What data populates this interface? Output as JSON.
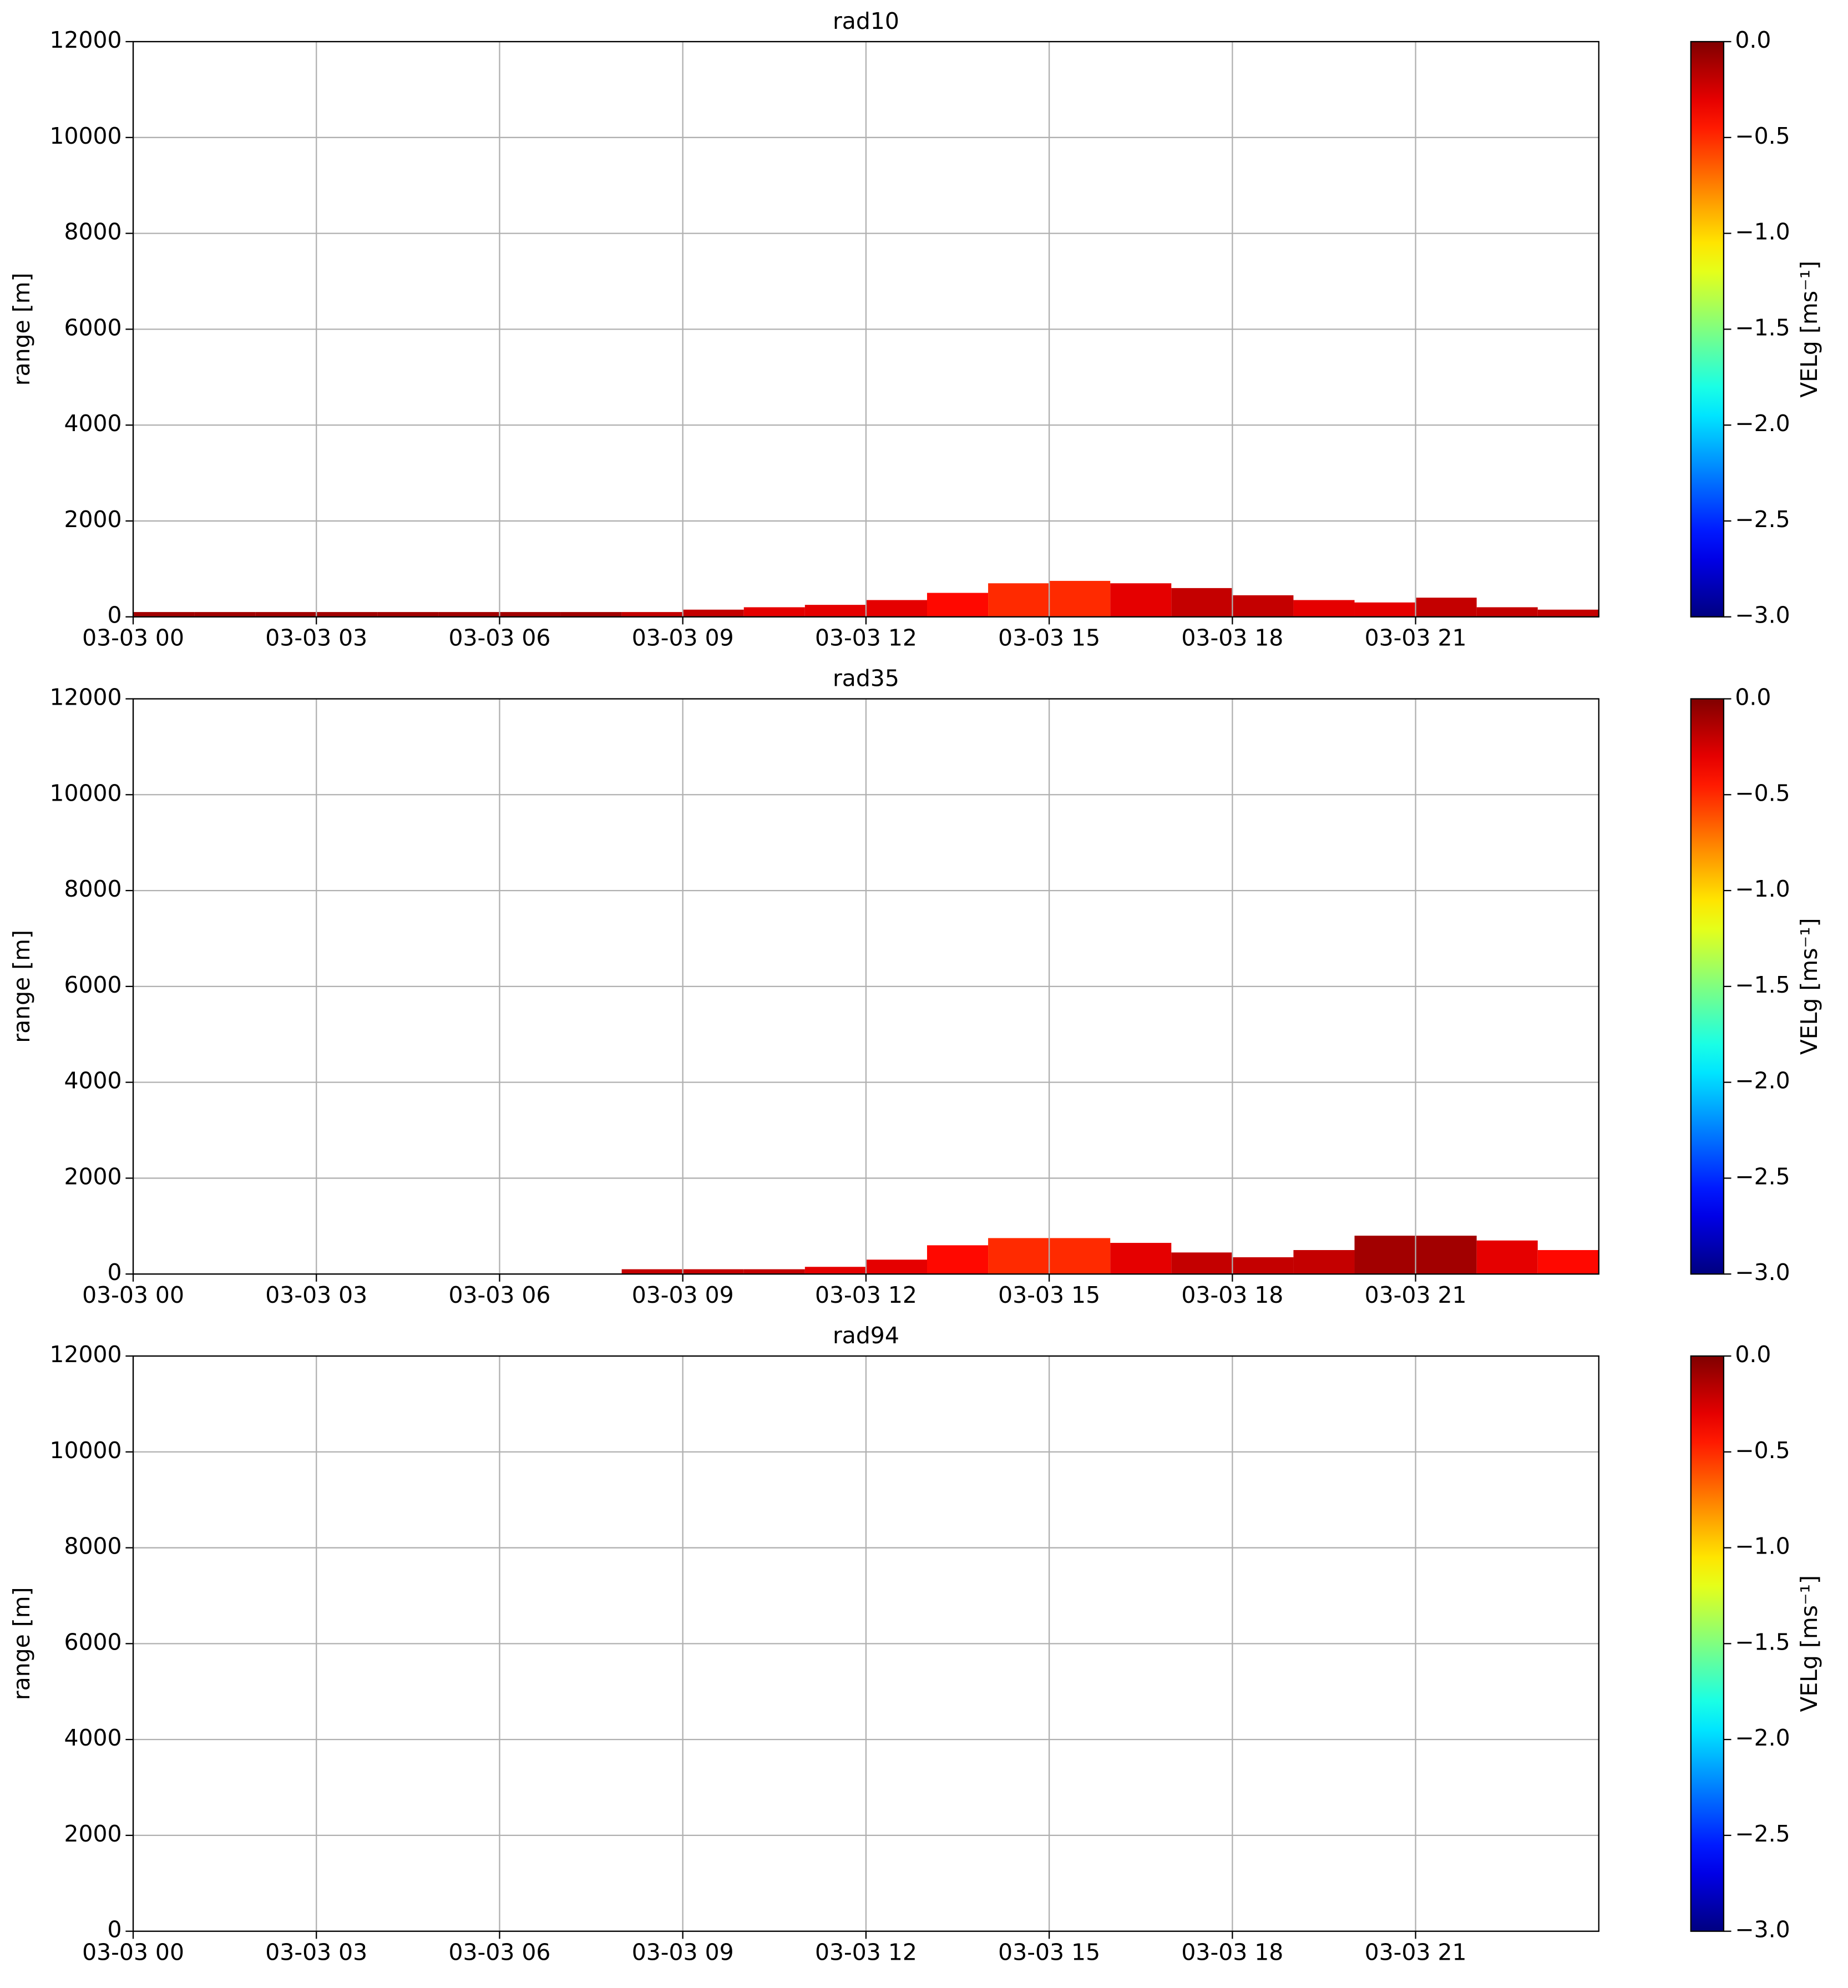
{
  "chart_data": [
    {
      "type": "heatmap",
      "title": "rad10",
      "ylabel": "range [m]",
      "colorbar_label": "VELg [ms⁻¹]",
      "colormap": "jet",
      "grid": true,
      "x": [
        0.5,
        1.5,
        2.5,
        3.5,
        4.5,
        5.5,
        6.5,
        7.5,
        8.5,
        9.5,
        10.5,
        11.5,
        12.5,
        13.5,
        14.5,
        15.5,
        16.5,
        17.5,
        18.5,
        19.5,
        20.5,
        21.5,
        22.5,
        23.5
      ],
      "values": [
        100,
        100,
        100,
        100,
        100,
        100,
        100,
        100,
        100,
        150,
        200,
        250,
        350,
        500,
        700,
        750,
        700,
        600,
        450,
        350,
        300,
        400,
        200,
        150
      ],
      "color_values": [
        -0.1,
        -0.1,
        -0.1,
        -0.1,
        -0.1,
        -0.1,
        -0.1,
        -0.1,
        -0.2,
        -0.2,
        -0.3,
        -0.3,
        -0.3,
        -0.4,
        -0.5,
        -0.5,
        -0.3,
        -0.2,
        -0.2,
        -0.3,
        -0.3,
        -0.2,
        -0.2,
        -0.2
      ],
      "xlim": [
        0,
        24
      ],
      "xticks": [
        {
          "value": 0,
          "label": "03-03 00"
        },
        {
          "value": 3,
          "label": "03-03 03"
        },
        {
          "value": 6,
          "label": "03-03 06"
        },
        {
          "value": 9,
          "label": "03-03 09"
        },
        {
          "value": 12,
          "label": "03-03 12"
        },
        {
          "value": 15,
          "label": "03-03 15"
        },
        {
          "value": 18,
          "label": "03-03 18"
        },
        {
          "value": 21,
          "label": "03-03 21"
        }
      ],
      "ylim": [
        0,
        12000
      ],
      "yticks": [
        0,
        2000,
        4000,
        6000,
        8000,
        10000,
        12000
      ],
      "clim": [
        -3,
        0
      ],
      "cticks": [
        {
          "value": 0,
          "label": "0.0"
        },
        {
          "value": -0.5,
          "label": "−0.5"
        },
        {
          "value": -1,
          "label": "−1.0"
        },
        {
          "value": -1.5,
          "label": "−1.5"
        },
        {
          "value": -2,
          "label": "−2.0"
        },
        {
          "value": -2.5,
          "label": "−2.5"
        },
        {
          "value": -3,
          "label": "−3.0"
        }
      ]
    },
    {
      "type": "heatmap",
      "title": "rad35",
      "ylabel": "range [m]",
      "colorbar_label": "VELg [ms⁻¹]",
      "colormap": "jet",
      "grid": true,
      "x": [
        0.5,
        1.5,
        2.5,
        3.5,
        4.5,
        5.5,
        6.5,
        7.5,
        8.5,
        9.5,
        10.5,
        11.5,
        12.5,
        13.5,
        14.5,
        15.5,
        16.5,
        17.5,
        18.5,
        19.5,
        20.5,
        21.5,
        22.5,
        23.5
      ],
      "values": [
        null,
        null,
        null,
        null,
        null,
        null,
        null,
        null,
        100,
        100,
        100,
        150,
        300,
        600,
        750,
        750,
        650,
        450,
        350,
        500,
        800,
        800,
        700,
        500
      ],
      "color_values": [
        null,
        null,
        null,
        null,
        null,
        null,
        null,
        null,
        -0.2,
        -0.2,
        -0.2,
        -0.3,
        -0.3,
        -0.4,
        -0.5,
        -0.5,
        -0.3,
        -0.2,
        -0.2,
        -0.2,
        -0.1,
        -0.1,
        -0.3,
        -0.4
      ],
      "xlim": [
        0,
        24
      ],
      "xticks": [
        {
          "value": 0,
          "label": "03-03 00"
        },
        {
          "value": 3,
          "label": "03-03 03"
        },
        {
          "value": 6,
          "label": "03-03 06"
        },
        {
          "value": 9,
          "label": "03-03 09"
        },
        {
          "value": 12,
          "label": "03-03 12"
        },
        {
          "value": 15,
          "label": "03-03 15"
        },
        {
          "value": 18,
          "label": "03-03 18"
        },
        {
          "value": 21,
          "label": "03-03 21"
        }
      ],
      "ylim": [
        0,
        12000
      ],
      "yticks": [
        0,
        2000,
        4000,
        6000,
        8000,
        10000,
        12000
      ],
      "clim": [
        -3,
        0
      ],
      "cticks": [
        {
          "value": 0,
          "label": "0.0"
        },
        {
          "value": -0.5,
          "label": "−0.5"
        },
        {
          "value": -1,
          "label": "−1.0"
        },
        {
          "value": -1.5,
          "label": "−1.5"
        },
        {
          "value": -2,
          "label": "−2.0"
        },
        {
          "value": -2.5,
          "label": "−2.5"
        },
        {
          "value": -3,
          "label": "−3.0"
        }
      ]
    },
    {
      "type": "heatmap",
      "title": "rad94",
      "ylabel": "range [m]",
      "colorbar_label": "VELg [ms⁻¹]",
      "colormap": "jet",
      "grid": true,
      "x": [],
      "values": [],
      "color_values": [],
      "xlim": [
        0,
        24
      ],
      "xticks": [
        {
          "value": 0,
          "label": "03-03 00"
        },
        {
          "value": 3,
          "label": "03-03 03"
        },
        {
          "value": 6,
          "label": "03-03 06"
        },
        {
          "value": 9,
          "label": "03-03 09"
        },
        {
          "value": 12,
          "label": "03-03 12"
        },
        {
          "value": 15,
          "label": "03-03 15"
        },
        {
          "value": 18,
          "label": "03-03 18"
        },
        {
          "value": 21,
          "label": "03-03 21"
        }
      ],
      "ylim": [
        0,
        12000
      ],
      "yticks": [
        0,
        2000,
        4000,
        6000,
        8000,
        10000,
        12000
      ],
      "clim": [
        -3,
        0
      ],
      "cticks": [
        {
          "value": 0,
          "label": "0.0"
        },
        {
          "value": -0.5,
          "label": "−0.5"
        },
        {
          "value": -1,
          "label": "−1.0"
        },
        {
          "value": -1.5,
          "label": "−1.5"
        },
        {
          "value": -2,
          "label": "−2.0"
        },
        {
          "value": -2.5,
          "label": "−2.5"
        },
        {
          "value": -3,
          "label": "−3.0"
        }
      ]
    }
  ]
}
